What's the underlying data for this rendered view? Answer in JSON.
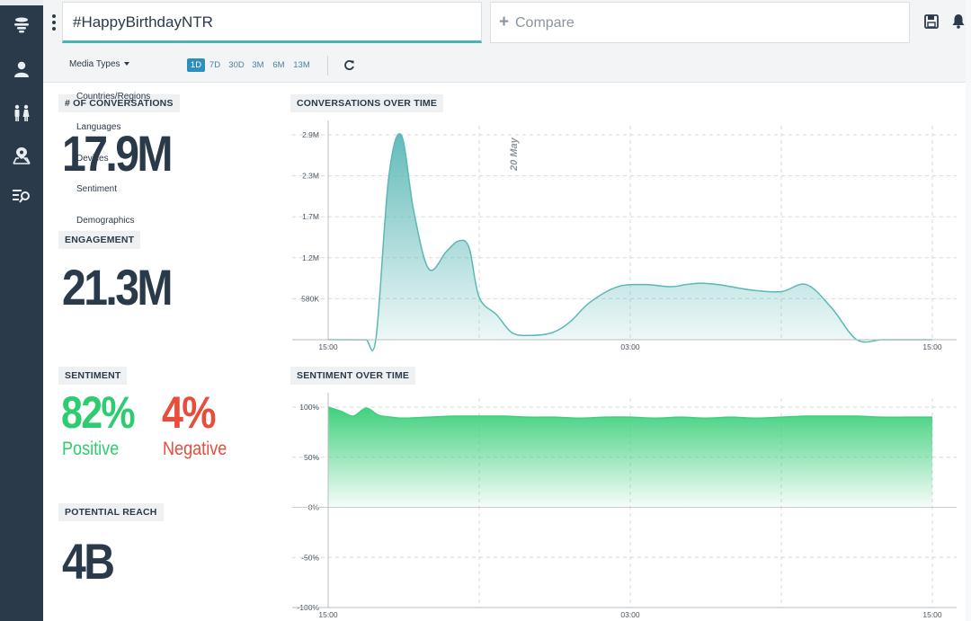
{
  "sidebar": {
    "items": [
      {
        "icon": "layers-icon",
        "name": "overview"
      },
      {
        "icon": "user-icon",
        "name": "profile"
      },
      {
        "icon": "people-icon",
        "name": "demographics"
      },
      {
        "icon": "map-pin-icon",
        "name": "location"
      },
      {
        "icon": "list-search-icon",
        "name": "search"
      }
    ]
  },
  "header": {
    "query": "#HappyBirthdayNTR",
    "compare_label": "Compare",
    "compare_plus": "+"
  },
  "filters": {
    "media_types": "Media Types",
    "ranges": [
      "1D",
      "7D",
      "30D",
      "3M",
      "6M",
      "13M"
    ],
    "active_range": "1D"
  },
  "dropdown": {
    "items": [
      "Countries/Regions",
      "Languages",
      "Devices",
      "Sentiment",
      "Demographics"
    ]
  },
  "metrics": {
    "conversations_label": "# OF CONVERSATIONS",
    "conversations_value": "17.9M",
    "engagement_label": "ENGAGEMENT",
    "engagement_value": "21.3M",
    "sentiment_label": "SENTIMENT",
    "positive_pct": "82%",
    "positive_label": "Positive",
    "negative_pct": "4%",
    "negative_label": "Negative",
    "reach_label": "POTENTIAL REACH",
    "reach_value": "4B"
  },
  "colors": {
    "sidebar": "#2b3a4a",
    "accent_teal": "#4ab3b3",
    "positive": "#2ecc71",
    "negative": "#e74c3c",
    "active_range": "#2e8fbf"
  },
  "chart_data": [
    {
      "type": "area",
      "title": "CONVERSATIONS OVER TIME",
      "xlabel": "",
      "ylabel": "",
      "x_tick_labels": [
        "15:00",
        "03:00",
        "15:00"
      ],
      "y_tick_labels": [
        "580K",
        "1.2M",
        "1.7M",
        "2.3M",
        "2.9M"
      ],
      "y_tick_values": [
        580000,
        1160000,
        1740000,
        2320000,
        2900000
      ],
      "ylim": [
        0,
        2900000
      ],
      "xlim": [
        0,
        24
      ],
      "annotation": "20 May",
      "annotation_x": 7.5,
      "grid": true,
      "x_hours": [
        0,
        1,
        1.5,
        1.9,
        2.4,
        2.9,
        3.4,
        4.0,
        4.7,
        5.2,
        5.6,
        6.0,
        6.7,
        7.3,
        8.0,
        8.9,
        9.6,
        10.4,
        11.5,
        12.6,
        13.6,
        14.2,
        14.8,
        15.5,
        16.0,
        16.9,
        18.0,
        19.0,
        20.0,
        21.0,
        22.0,
        23.0,
        23.5,
        24.0
      ],
      "values": [
        0,
        0,
        0,
        20000,
        2280000,
        2900000,
        1820000,
        1000000,
        1250000,
        1400000,
        1300000,
        600000,
        350000,
        100000,
        60000,
        100000,
        250000,
        530000,
        750000,
        780000,
        750000,
        780000,
        800000,
        780000,
        750000,
        700000,
        680000,
        780000,
        450000,
        0,
        0,
        0,
        0,
        0
      ],
      "series_note_color": "#4ab3b3"
    },
    {
      "type": "area",
      "title": "SENTIMENT OVER TIME",
      "xlabel": "",
      "ylabel": "",
      "x_tick_labels": [
        "15:00",
        "03:00",
        "15:00"
      ],
      "y_tick_labels": [
        "100%",
        "50%",
        "0%",
        "-50%",
        "-100%"
      ],
      "y_tick_values": [
        100,
        50,
        0,
        -50,
        -100
      ],
      "ylim": [
        -100,
        100
      ],
      "xlim": [
        0,
        24
      ],
      "grid": true,
      "x_hours": [
        0,
        0.5,
        1.0,
        1.5,
        2.0,
        2.5,
        3.0,
        4.0,
        5.0,
        6.0,
        7.0,
        8.0,
        9.0,
        10.0,
        11.0,
        12.0,
        13.0,
        14.0,
        15.0,
        16.0,
        17.0,
        18.0,
        19.0,
        20.0,
        21.0,
        22.0,
        23.0,
        24.0
      ],
      "values": [
        100,
        96,
        91,
        99,
        92,
        90,
        89,
        90,
        91,
        91,
        91,
        90,
        90,
        89,
        90,
        90,
        89,
        90,
        89,
        90,
        89,
        90,
        91,
        91,
        91,
        90,
        90,
        90
      ]
    }
  ]
}
